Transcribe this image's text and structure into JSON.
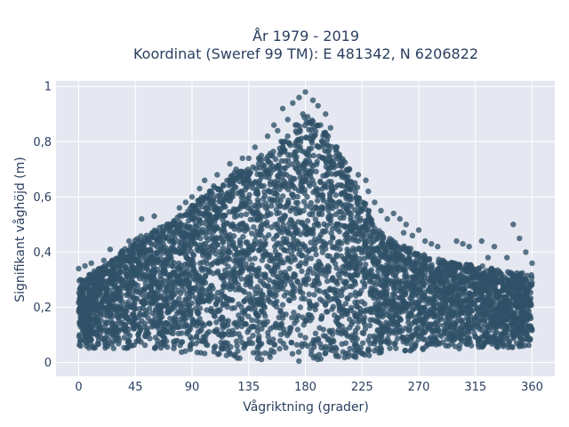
{
  "chart_data": {
    "type": "scatter",
    "title_line1": "År 1979 - 2019",
    "title_line2": "Koordinat (Sweref 99 TM): E 481342, N 6206822",
    "xlabel": "Vågriktning (grader)",
    "ylabel": "Signifikant våghöjd (m)",
    "xlim": [
      -18,
      378
    ],
    "ylim": [
      -0.05,
      1.02
    ],
    "xticks": [
      0,
      45,
      90,
      135,
      180,
      225,
      270,
      315,
      360
    ],
    "xtick_labels": [
      "0",
      "45",
      "90",
      "135",
      "180",
      "225",
      "270",
      "315",
      "360"
    ],
    "yticks": [
      0,
      0.2,
      0.4,
      0.6,
      0.8,
      1
    ],
    "ytick_labels": [
      "0",
      "0,2",
      "0,4",
      "0,6",
      "0,8",
      "1"
    ],
    "grid": true,
    "colors": {
      "marker": "#2f5168",
      "plot_bg": "#e5e8f1",
      "grid": "#ffffff",
      "text": "#2a3f5f"
    },
    "envelope": {
      "direction": [
        0,
        20,
        45,
        70,
        90,
        110,
        135,
        150,
        165,
        175,
        180,
        185,
        195,
        210,
        225,
        240,
        260,
        280,
        300,
        320,
        340,
        360
      ],
      "upper_hs": [
        0.3,
        0.35,
        0.45,
        0.5,
        0.57,
        0.65,
        0.72,
        0.76,
        0.82,
        0.87,
        0.9,
        0.88,
        0.84,
        0.75,
        0.6,
        0.47,
        0.42,
        0.38,
        0.36,
        0.35,
        0.33,
        0.32
      ],
      "lower_hs": [
        0.05,
        0.05,
        0.05,
        0.04,
        0.03,
        0.02,
        0.01,
        0.0,
        0.0,
        0.0,
        0.0,
        0.0,
        0.0,
        0.01,
        0.02,
        0.03,
        0.04,
        0.05,
        0.05,
        0.05,
        0.05,
        0.06
      ]
    },
    "points": [
      [
        180,
        0.98
      ],
      [
        175,
        0.96
      ],
      [
        170,
        0.94
      ],
      [
        186,
        0.95
      ],
      [
        162,
        0.92
      ],
      [
        190,
        0.93
      ],
      [
        178,
        0.9
      ],
      [
        166,
        0.88
      ],
      [
        196,
        0.9
      ],
      [
        155,
        0.86
      ],
      [
        200,
        0.85
      ],
      [
        150,
        0.82
      ],
      [
        205,
        0.78
      ],
      [
        140,
        0.78
      ],
      [
        145,
        0.75
      ],
      [
        130,
        0.74
      ],
      [
        210,
        0.73
      ],
      [
        120,
        0.72
      ],
      [
        215,
        0.7
      ],
      [
        222,
        0.68
      ],
      [
        228,
        0.66
      ],
      [
        110,
        0.68
      ],
      [
        100,
        0.66
      ],
      [
        96,
        0.63
      ],
      [
        230,
        0.62
      ],
      [
        235,
        0.58
      ],
      [
        240,
        0.55
      ],
      [
        245,
        0.52
      ],
      [
        250,
        0.54
      ],
      [
        255,
        0.52
      ],
      [
        260,
        0.5
      ],
      [
        258,
        0.47
      ],
      [
        265,
        0.46
      ],
      [
        270,
        0.48
      ],
      [
        275,
        0.44
      ],
      [
        280,
        0.43
      ],
      [
        285,
        0.42
      ],
      [
        300,
        0.44
      ],
      [
        305,
        0.43
      ],
      [
        310,
        0.42
      ],
      [
        320,
        0.44
      ],
      [
        330,
        0.42
      ],
      [
        345,
        0.5
      ],
      [
        350,
        0.45
      ],
      [
        355,
        0.4
      ],
      [
        360,
        0.36
      ],
      [
        340,
        0.38
      ],
      [
        325,
        0.38
      ],
      [
        70,
        0.5
      ],
      [
        60,
        0.53
      ],
      [
        50,
        0.52
      ],
      [
        40,
        0.44
      ],
      [
        35,
        0.4
      ],
      [
        25,
        0.41
      ],
      [
        20,
        0.37
      ],
      [
        10,
        0.36
      ],
      [
        5,
        0.35
      ],
      [
        0,
        0.34
      ],
      [
        80,
        0.56
      ],
      [
        85,
        0.58
      ],
      [
        90,
        0.6
      ],
      [
        105,
        0.62
      ],
      [
        115,
        0.64
      ],
      [
        125,
        0.7
      ],
      [
        135,
        0.74
      ],
      [
        158,
        0.84
      ],
      [
        172,
        0.86
      ],
      [
        183,
        0.87
      ],
      [
        192,
        0.86
      ],
      [
        198,
        0.82
      ]
    ]
  }
}
